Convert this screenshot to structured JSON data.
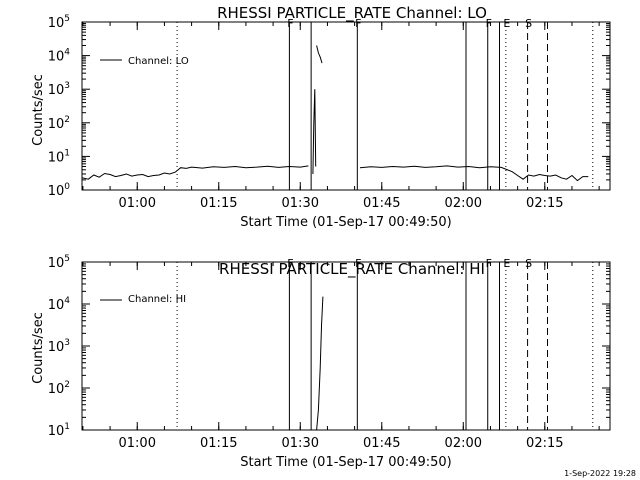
{
  "timestamp": "1-Sep-2022 19:28",
  "chart_data": [
    {
      "type": "line",
      "title": "RHESSI PARTICLE_RATE Channel: LO",
      "xlabel": "Start Time (01-Sep-17 00:49:50)",
      "ylabel": "Counts/sec",
      "yscale": "log",
      "xlim": [
        "00:49:50",
        "02:27:00"
      ],
      "ylim": [
        1,
        100000
      ],
      "xticks": [
        "01:00",
        "01:15",
        "01:30",
        "01:45",
        "02:00",
        "02:15"
      ],
      "yticks": [
        {
          "base": "10",
          "exp": "0"
        },
        {
          "base": "10",
          "exp": "1"
        },
        {
          "base": "10",
          "exp": "2"
        },
        {
          "base": "10",
          "exp": "3"
        },
        {
          "base": "10",
          "exp": "4"
        },
        {
          "base": "10",
          "exp": "5"
        }
      ],
      "legend": {
        "label": "Channel: LO",
        "position": "top-left"
      },
      "vlines": [
        {
          "t": "01:07:20",
          "style": "dotted",
          "label": ""
        },
        {
          "t": "01:28:00",
          "style": "solid",
          "label": "F"
        },
        {
          "t": "01:32:00",
          "style": "solid",
          "label": ""
        },
        {
          "t": "01:40:30",
          "style": "solid",
          "label": "F"
        },
        {
          "t": "02:00:30",
          "style": "solid",
          "label": ""
        },
        {
          "t": "02:04:30",
          "style": "solid",
          "label": "F"
        },
        {
          "t": "02:06:40",
          "style": "solid",
          "label": ""
        },
        {
          "t": "02:07:50",
          "style": "dotted",
          "label": "E"
        },
        {
          "t": "02:11:50",
          "style": "dashed",
          "label": "S"
        },
        {
          "t": "02:15:30",
          "style": "dashed",
          "label": ""
        },
        {
          "t": "02:23:50",
          "style": "dotted",
          "label": ""
        }
      ],
      "series": [
        {
          "x": [
            "00:49:50",
            "00:51:00",
            "00:52:00",
            "00:53:00",
            "00:54:00",
            "00:55:00",
            "00:56:00",
            "00:57:00",
            "00:58:00",
            "00:59:00",
            "01:00:00",
            "01:01:00",
            "01:02:00",
            "01:03:00",
            "01:04:00",
            "01:05:00",
            "01:06:00",
            "01:07:00",
            "01:08:00",
            "01:09:00",
            "01:10:00",
            "01:12:00",
            "01:14:00",
            "01:16:00",
            "01:18:00",
            "01:20:00",
            "01:22:00",
            "01:24:00",
            "01:26:00",
            "01:28:00",
            "01:30:00",
            "01:31:30"
          ],
          "y": [
            2.3,
            2.1,
            2.8,
            2.4,
            3.1,
            2.9,
            2.5,
            2.7,
            3.0,
            2.6,
            2.8,
            2.9,
            2.5,
            2.7,
            2.8,
            3.2,
            3.0,
            3.4,
            4.6,
            4.4,
            4.8,
            4.5,
            4.9,
            4.7,
            5.0,
            4.6,
            4.8,
            5.1,
            4.7,
            5.0,
            4.8,
            5.2
          ]
        },
        {
          "x": [
            "01:32:20",
            "01:32:30",
            "01:32:40",
            "01:32:50"
          ],
          "y": [
            3.0,
            100,
            1000,
            5.0
          ]
        },
        {
          "x": [
            "01:33:00",
            "01:33:20",
            "01:33:40",
            "01:34:00"
          ],
          "y": [
            20000,
            12000,
            9000,
            6000
          ]
        },
        {
          "x": [
            "01:41:00",
            "01:43:00",
            "01:45:00",
            "01:47:00",
            "01:49:00",
            "01:51:00",
            "01:53:00",
            "01:55:00",
            "01:57:00",
            "01:59:00",
            "02:01:00",
            "02:03:00",
            "02:05:00",
            "02:07:00",
            "02:09:00",
            "02:10:00",
            "02:11:00",
            "02:12:00",
            "02:13:00",
            "02:14:00",
            "02:15:00",
            "02:16:00",
            "02:17:00",
            "02:18:00",
            "02:19:00",
            "02:20:00",
            "02:21:00",
            "02:22:00",
            "02:23:00"
          ],
          "y": [
            4.6,
            4.9,
            4.7,
            5.0,
            4.8,
            5.1,
            4.7,
            4.9,
            5.2,
            4.8,
            5.0,
            4.6,
            4.9,
            4.7,
            3.5,
            2.7,
            2.1,
            2.8,
            2.6,
            2.9,
            2.7,
            2.6,
            2.8,
            2.3,
            2.1,
            2.7,
            1.9,
            2.5,
            2.5
          ]
        }
      ]
    },
    {
      "type": "line",
      "title": "RHESSI PARTICLE_RATE Channel: HI",
      "xlabel": "Start Time (01-Sep-17 00:49:50)",
      "ylabel": "Counts/sec",
      "yscale": "log",
      "xlim": [
        "00:49:50",
        "02:27:00"
      ],
      "ylim": [
        10,
        100000
      ],
      "xticks": [
        "01:00",
        "01:15",
        "01:30",
        "01:45",
        "02:00",
        "02:15"
      ],
      "yticks": [
        {
          "base": "10",
          "exp": "1"
        },
        {
          "base": "10",
          "exp": "2"
        },
        {
          "base": "10",
          "exp": "3"
        },
        {
          "base": "10",
          "exp": "4"
        },
        {
          "base": "10",
          "exp": "5"
        }
      ],
      "legend": {
        "label": "Channel: HI",
        "position": "top-left"
      },
      "vlines": [
        {
          "t": "01:07:20",
          "style": "dotted",
          "label": ""
        },
        {
          "t": "01:28:00",
          "style": "solid",
          "label": "F"
        },
        {
          "t": "01:32:00",
          "style": "solid",
          "label": ""
        },
        {
          "t": "01:40:30",
          "style": "solid",
          "label": "F"
        },
        {
          "t": "02:00:30",
          "style": "solid",
          "label": ""
        },
        {
          "t": "02:04:30",
          "style": "solid",
          "label": "F"
        },
        {
          "t": "02:06:40",
          "style": "solid",
          "label": ""
        },
        {
          "t": "02:07:50",
          "style": "dotted",
          "label": "E"
        },
        {
          "t": "02:11:50",
          "style": "dashed",
          "label": "S"
        },
        {
          "t": "02:15:30",
          "style": "dashed",
          "label": ""
        },
        {
          "t": "02:23:50",
          "style": "dotted",
          "label": ""
        }
      ],
      "series": [
        {
          "x": [
            "01:33:00",
            "01:33:20",
            "01:33:40",
            "01:33:55",
            "01:34:10"
          ],
          "y": [
            10,
            30,
            300,
            3000,
            15000
          ]
        }
      ]
    }
  ]
}
